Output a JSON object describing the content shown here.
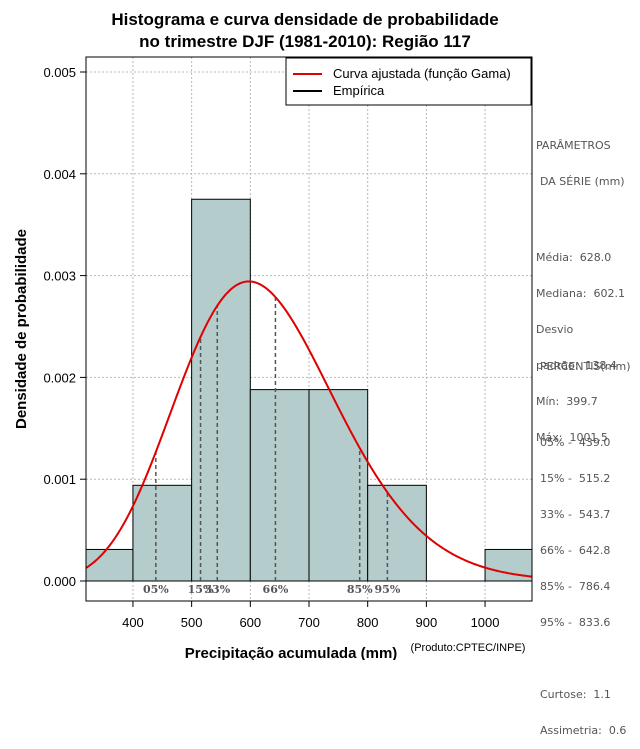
{
  "chart_data": {
    "type": "histogram",
    "title_lines": [
      "Histograma e curva densidade de probabilidade",
      "no trimestre DJF (1981-2010): Região 117"
    ],
    "xlabel": "Precipitação acumulada (mm)",
    "ylabel": "Densidade de probabilidade",
    "credit": "(Produto:CPTEC/INPE)",
    "xlim": [
      320,
      1080
    ],
    "ylim": [
      0,
      0.00515
    ],
    "x_ticks": [
      400,
      500,
      600,
      700,
      800,
      900,
      1000
    ],
    "y_ticks": [
      0.0,
      0.001,
      0.002,
      0.003,
      0.004,
      0.005
    ],
    "y_tick_labels": [
      "0.000",
      "0.001",
      "0.002",
      "0.003",
      "0.004",
      "0.005"
    ],
    "grid": true,
    "bins": [
      {
        "x0": 300,
        "x1": 400,
        "density": 0.00031
      },
      {
        "x0": 400,
        "x1": 500,
        "density": 0.00094
      },
      {
        "x0": 500,
        "x1": 600,
        "density": 0.00375
      },
      {
        "x0": 600,
        "x1": 700,
        "density": 0.00188
      },
      {
        "x0": 700,
        "x1": 800,
        "density": 0.00188
      },
      {
        "x0": 800,
        "x1": 900,
        "density": 0.00094
      },
      {
        "x0": 900,
        "x1": 1000,
        "density": 0.0
      },
      {
        "x0": 1000,
        "x1": 1100,
        "density": 0.00031
      }
    ],
    "gamma_fit": {
      "mean": 628.0,
      "sd": 138.4
    },
    "legend": {
      "position": "top-right",
      "entries": [
        {
          "label": "Curva ajustada (função Gama)",
          "color": "#e00000"
        },
        {
          "label": "Empírica",
          "color": "#000000"
        }
      ]
    },
    "percentile_markers": [
      {
        "label": "05%",
        "x": 439.0
      },
      {
        "label": "15%",
        "x": 515.2
      },
      {
        "label": "33%",
        "x": 543.7
      },
      {
        "label": "66%",
        "x": 642.8
      },
      {
        "label": "85%",
        "x": 786.4
      },
      {
        "label": "95%",
        "x": 833.6
      }
    ]
  },
  "colors": {
    "bar_fill": "#b4cccc",
    "bar_stroke": "#000000",
    "curve": "#e00000",
    "grid": "#b8b8b8",
    "marker": "#555555",
    "side_text": "#555555"
  },
  "params": {
    "title": "PARÂMETROS",
    "subtitle": "DA SÉRIE (mm)",
    "media": "Média:  628.0",
    "mediana": "Mediana:  602.1",
    "desvio_1": "Desvio",
    "desvio_2": "padrão:  138.4",
    "min": "Mín:  399.7",
    "max": "Máx:  1001.5"
  },
  "percentis": {
    "title": "PERCENTIS(mm)",
    "rows": [
      "05% -  439.0",
      "15% -  515.2",
      "33% -  543.7",
      "66% -  642.8",
      "85% -  786.4",
      "95% -  833.6"
    ],
    "curtose": "Curtose:  1.1",
    "assimetria": "Assimetria:  0.6"
  }
}
